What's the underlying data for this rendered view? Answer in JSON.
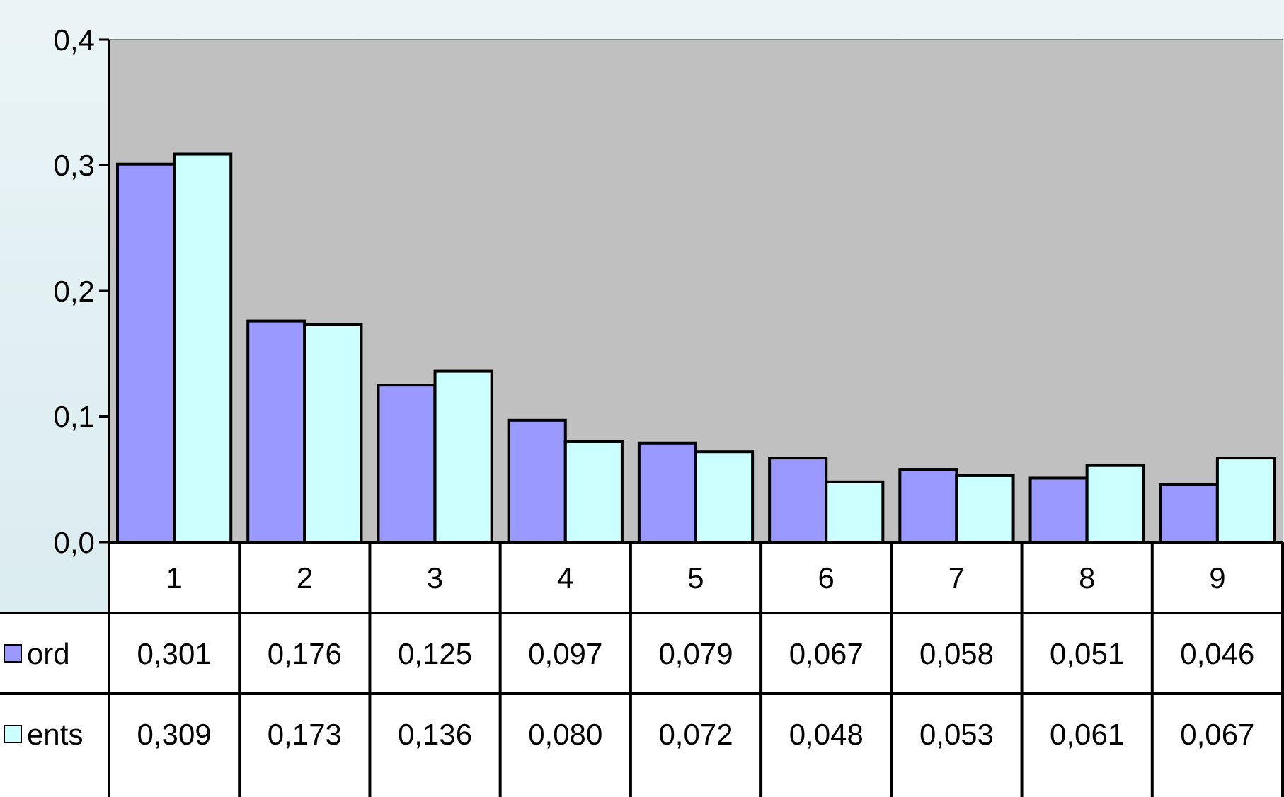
{
  "chart_data": {
    "type": "bar",
    "categories": [
      "1",
      "2",
      "3",
      "4",
      "5",
      "6",
      "7",
      "8",
      "9"
    ],
    "series": [
      {
        "name": "ord",
        "color": "#9999ff",
        "values": [
          0.301,
          0.176,
          0.125,
          0.097,
          0.079,
          0.067,
          0.058,
          0.051,
          0.046
        ],
        "value_labels": [
          "0,301",
          "0,176",
          "0,125",
          "0,097",
          "0,079",
          "0,067",
          "0,058",
          "0,051",
          "0,046"
        ]
      },
      {
        "name": "ents",
        "color": "#ccffff",
        "values": [
          0.309,
          0.173,
          0.136,
          0.08,
          0.072,
          0.048,
          0.053,
          0.061,
          0.067
        ],
        "value_labels": [
          "0,309",
          "0,173",
          "0,136",
          "0,080",
          "0,072",
          "0,048",
          "0,053",
          "0,061",
          "0,067"
        ]
      }
    ],
    "ylim": [
      0,
      0.4
    ],
    "yticks": [
      {
        "value": 0,
        "label": "0,0"
      },
      {
        "value": 0.1,
        "label": "0,1"
      },
      {
        "value": 0.2,
        "label": "0,2"
      },
      {
        "value": 0.3,
        "label": "0,3"
      },
      {
        "value": 0.4,
        "label": "0,4"
      }
    ],
    "grid": false,
    "legend": "bottom left"
  }
}
